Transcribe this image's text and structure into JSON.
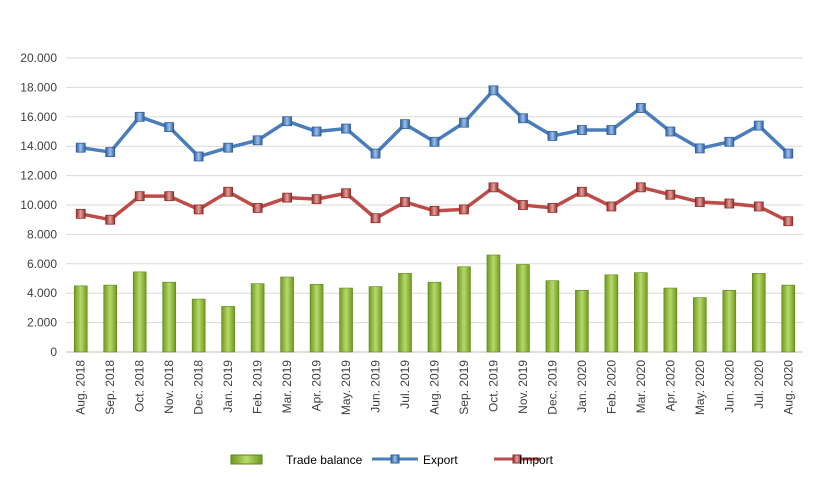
{
  "chart_data": {
    "type": "bar",
    "categories": [
      "Aug. 2018",
      "Sep. 2018",
      "Oct. 2018",
      "Nov. 2018",
      "Dec. 2018",
      "Jan. 2019",
      "Feb. 2019",
      "Mar. 2019",
      "Apr. 2019",
      "May. 2019",
      "Jun. 2019",
      "Jul. 2019",
      "Aug. 2019",
      "Sep. 2019",
      "Oct. 2019",
      "Nov. 2019",
      "Dec. 2019",
      "Jan. 2020",
      "Feb. 2020",
      "Mar. 2020",
      "Apr. 2020",
      "May. 2020",
      "Jun. 2020",
      "Jul. 2020",
      "Aug. 2020"
    ],
    "series": [
      {
        "name": "Trade balance",
        "type": "bar",
        "color": "#8DB52F",
        "values": [
          4500,
          4550,
          5450,
          4750,
          3600,
          3100,
          4650,
          5100,
          4600,
          4350,
          4450,
          5350,
          4750,
          5800,
          6600,
          5950,
          4850,
          4200,
          5250,
          5400,
          4350,
          3700,
          4200,
          5350,
          4550
        ]
      },
      {
        "name": "Export",
        "type": "line",
        "color": "#4A7EBB",
        "values": [
          13900,
          13600,
          16000,
          15300,
          13300,
          13900,
          14400,
          15700,
          15000,
          15200,
          13500,
          15500,
          14300,
          15600,
          17800,
          15900,
          14700,
          15100,
          15100,
          16600,
          15000,
          13850,
          14300,
          15400,
          13500
        ]
      },
      {
        "name": "Import",
        "type": "line",
        "color": "#BE4B48",
        "values": [
          9400,
          9000,
          10600,
          10600,
          9700,
          10900,
          9800,
          10500,
          10400,
          10800,
          9100,
          10200,
          9600,
          9700,
          11200,
          10000,
          9800,
          10900,
          9900,
          11200,
          10700,
          10200,
          10100,
          9900,
          8900
        ]
      }
    ],
    "ylim": [
      0,
      20000
    ],
    "y_ticks": [
      "0",
      "2.000",
      "4.000",
      "6.000",
      "8.000",
      "10.000",
      "12.000",
      "14.000",
      "16.000",
      "18.000",
      "20.000"
    ],
    "grid": true,
    "legend_position": "bottom"
  }
}
